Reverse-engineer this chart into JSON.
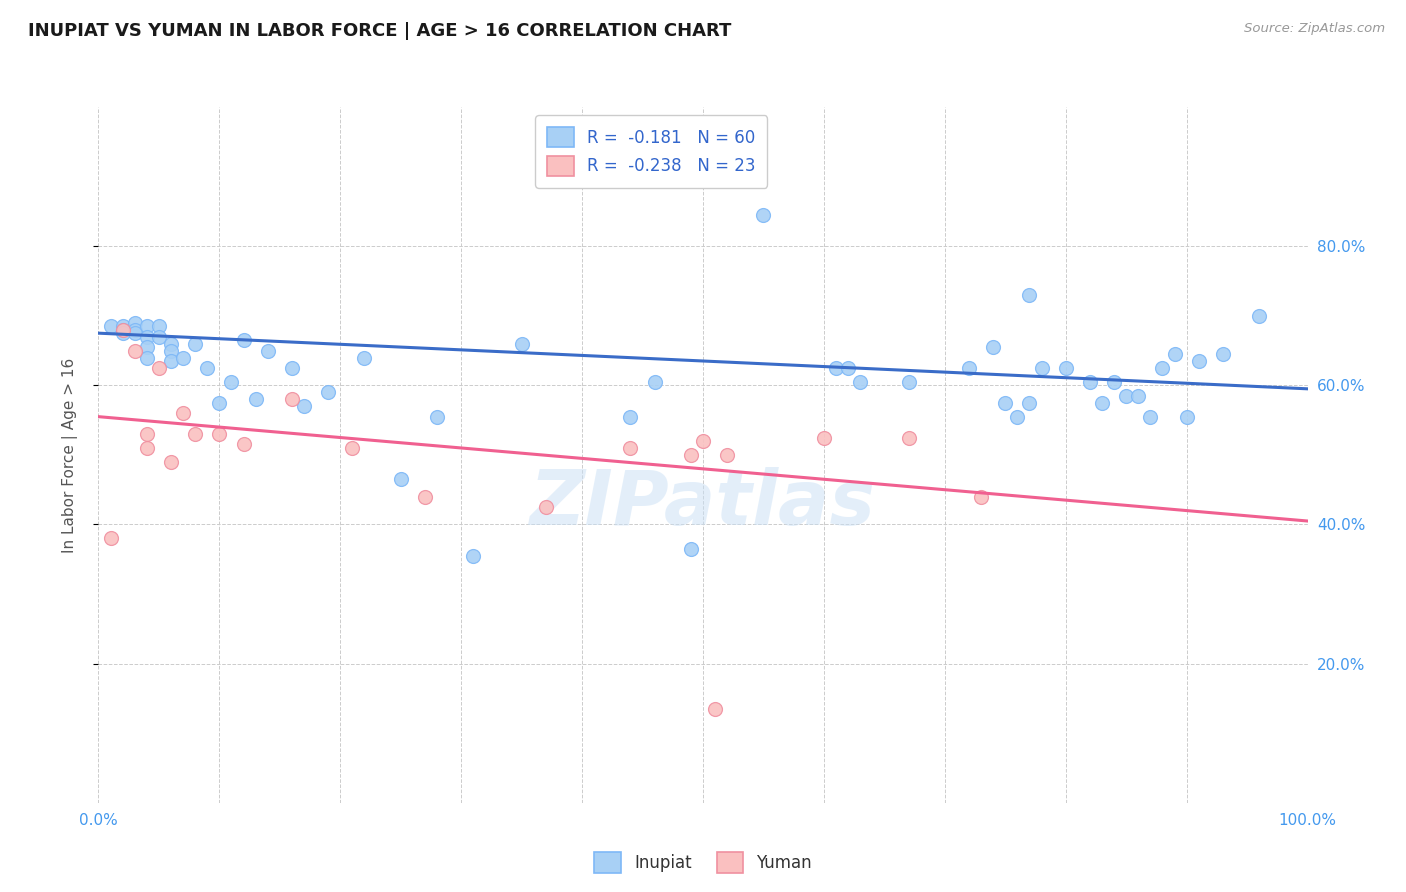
{
  "title": "INUPIAT VS YUMAN IN LABOR FORCE | AGE > 16 CORRELATION CHART",
  "source_text": "Source: ZipAtlas.com",
  "ylabel": "In Labor Force | Age > 16",
  "xlim": [
    0.0,
    1.0
  ],
  "ylim": [
    0.0,
    1.0
  ],
  "xticks": [
    0.0,
    0.1,
    0.2,
    0.3,
    0.4,
    0.5,
    0.6,
    0.7,
    0.8,
    0.9,
    1.0
  ],
  "xticklabels": [
    "0.0%",
    "",
    "",
    "",
    "",
    "",
    "",
    "",
    "",
    "",
    "100.0%"
  ],
  "ytick_positions": [
    0.2,
    0.4,
    0.6,
    0.8
  ],
  "ytick_labels": [
    "20.0%",
    "40.0%",
    "60.0%",
    "80.0%"
  ],
  "background_color": "#ffffff",
  "grid_color": "#cccccc",
  "inupiat_color": "#A8D0F5",
  "inupiat_edge_color": "#7EB8F7",
  "yuman_color": "#FAC0C0",
  "yuman_edge_color": "#F090A0",
  "inupiat_line_color": "#3A6CC8",
  "yuman_line_color": "#F06090",
  "legend_R_inupiat": "R =  -0.181",
  "legend_N_inupiat": "N = 60",
  "legend_R_yuman": "R =  -0.238",
  "legend_N_yuman": "N = 23",
  "watermark": "ZIPatlas",
  "inupiat_x": [
    0.01,
    0.02,
    0.02,
    0.02,
    0.03,
    0.03,
    0.03,
    0.04,
    0.04,
    0.04,
    0.04,
    0.05,
    0.05,
    0.06,
    0.06,
    0.06,
    0.07,
    0.08,
    0.09,
    0.1,
    0.11,
    0.12,
    0.13,
    0.14,
    0.16,
    0.17,
    0.19,
    0.22,
    0.25,
    0.28,
    0.31,
    0.35,
    0.44,
    0.46,
    0.49,
    0.55,
    0.61,
    0.62,
    0.63,
    0.67,
    0.72,
    0.74,
    0.75,
    0.76,
    0.77,
    0.77,
    0.78,
    0.8,
    0.82,
    0.83,
    0.84,
    0.85,
    0.86,
    0.87,
    0.88,
    0.89,
    0.9,
    0.91,
    0.93,
    0.96
  ],
  "inupiat_y": [
    0.685,
    0.685,
    0.68,
    0.675,
    0.69,
    0.68,
    0.675,
    0.685,
    0.67,
    0.655,
    0.64,
    0.685,
    0.67,
    0.66,
    0.65,
    0.635,
    0.64,
    0.66,
    0.625,
    0.575,
    0.605,
    0.665,
    0.58,
    0.65,
    0.625,
    0.57,
    0.59,
    0.64,
    0.465,
    0.555,
    0.355,
    0.66,
    0.555,
    0.605,
    0.365,
    0.845,
    0.625,
    0.625,
    0.605,
    0.605,
    0.625,
    0.655,
    0.575,
    0.555,
    0.73,
    0.575,
    0.625,
    0.625,
    0.605,
    0.575,
    0.605,
    0.585,
    0.585,
    0.555,
    0.625,
    0.645,
    0.555,
    0.635,
    0.645,
    0.7
  ],
  "yuman_x": [
    0.01,
    0.02,
    0.03,
    0.04,
    0.04,
    0.05,
    0.06,
    0.07,
    0.08,
    0.1,
    0.12,
    0.16,
    0.21,
    0.27,
    0.37,
    0.44,
    0.49,
    0.5,
    0.52,
    0.6,
    0.67,
    0.73,
    0.51
  ],
  "yuman_y": [
    0.38,
    0.68,
    0.65,
    0.53,
    0.51,
    0.625,
    0.49,
    0.56,
    0.53,
    0.53,
    0.515,
    0.58,
    0.51,
    0.44,
    0.425,
    0.51,
    0.5,
    0.52,
    0.5,
    0.525,
    0.525,
    0.44,
    0.135
  ],
  "inupiat_trend_x": [
    0.0,
    1.0
  ],
  "inupiat_trend_y": [
    0.675,
    0.595
  ],
  "yuman_trend_x": [
    0.0,
    1.0
  ],
  "yuman_trend_y": [
    0.555,
    0.405
  ]
}
